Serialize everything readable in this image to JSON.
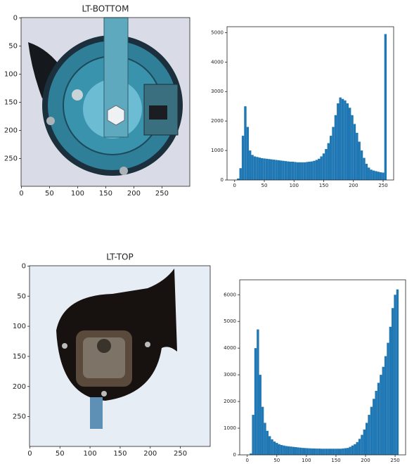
{
  "chart_data": [
    {
      "type": "image",
      "title": "LT-BOTTOM",
      "xlim": [
        -0.5,
        299.5
      ],
      "ylim": [
        299.5,
        -0.5
      ],
      "xticks": [
        0,
        50,
        100,
        150,
        200,
        250
      ],
      "yticks": [
        0,
        50,
        100,
        150,
        200,
        250
      ]
    },
    {
      "type": "histogram",
      "color": "#1f77b4",
      "xlim": [
        -12.75,
        267.75
      ],
      "ylim": [
        0,
        5200
      ],
      "xticks": [
        0,
        50,
        100,
        150,
        200,
        250
      ],
      "yticks": [
        0,
        1000,
        2000,
        3000,
        4000,
        5000
      ],
      "bins": [
        0,
        4,
        8,
        12,
        16,
        20,
        24,
        28,
        32,
        36,
        40,
        44,
        48,
        52,
        56,
        60,
        64,
        68,
        72,
        76,
        80,
        84,
        88,
        92,
        96,
        100,
        104,
        108,
        112,
        116,
        120,
        124,
        128,
        132,
        136,
        140,
        144,
        148,
        152,
        156,
        160,
        164,
        168,
        172,
        176,
        180,
        184,
        188,
        192,
        196,
        200,
        204,
        208,
        212,
        216,
        220,
        224,
        228,
        232,
        236,
        240,
        244,
        248,
        252,
        256
      ],
      "values": [
        0,
        50,
        400,
        1500,
        2500,
        1800,
        1000,
        850,
        800,
        780,
        760,
        740,
        730,
        720,
        710,
        700,
        690,
        680,
        670,
        660,
        650,
        640,
        630,
        620,
        620,
        610,
        600,
        600,
        600,
        600,
        610,
        620,
        630,
        650,
        680,
        720,
        800,
        900,
        1050,
        1250,
        1500,
        1800,
        2200,
        2600,
        2800,
        2750,
        2700,
        2600,
        2450,
        2200,
        1900,
        1600,
        1300,
        1000,
        750,
        550,
        420,
        350,
        320,
        300,
        280,
        260,
        250,
        4950
      ]
    },
    {
      "type": "image",
      "title": "LT-TOP",
      "xlim": [
        -0.5,
        299.5
      ],
      "ylim": [
        299.5,
        -0.5
      ],
      "xticks": [
        0,
        50,
        100,
        150,
        200,
        250
      ],
      "yticks": [
        0,
        50,
        100,
        150,
        200,
        250
      ]
    },
    {
      "type": "histogram",
      "color": "#1f77b4",
      "xlim": [
        -12.75,
        267.75
      ],
      "ylim": [
        0,
        6560
      ],
      "xticks": [
        0,
        50,
        100,
        150,
        200,
        250
      ],
      "yticks": [
        0,
        1000,
        2000,
        3000,
        4000,
        5000,
        6000
      ],
      "bins": [
        0,
        4,
        8,
        12,
        16,
        20,
        24,
        28,
        32,
        36,
        40,
        44,
        48,
        52,
        56,
        60,
        64,
        68,
        72,
        76,
        80,
        84,
        88,
        92,
        96,
        100,
        104,
        108,
        112,
        116,
        120,
        124,
        128,
        132,
        136,
        140,
        144,
        148,
        152,
        156,
        160,
        164,
        168,
        172,
        176,
        180,
        184,
        188,
        192,
        196,
        200,
        204,
        208,
        212,
        216,
        220,
        224,
        228,
        232,
        236,
        240,
        244,
        248,
        252,
        256
      ],
      "values": [
        0,
        50,
        1500,
        4000,
        4700,
        3000,
        1800,
        1200,
        900,
        700,
        580,
        500,
        450,
        400,
        370,
        350,
        330,
        320,
        310,
        300,
        290,
        280,
        270,
        260,
        255,
        250,
        245,
        240,
        240,
        235,
        235,
        230,
        230,
        230,
        230,
        230,
        230,
        230,
        230,
        230,
        240,
        250,
        260,
        300,
        350,
        400,
        480,
        600,
        750,
        950,
        1200,
        1500,
        1800,
        2100,
        2400,
        2700,
        3000,
        3300,
        3700,
        4200,
        4800,
        5500,
        6000,
        6200
      ]
    }
  ]
}
